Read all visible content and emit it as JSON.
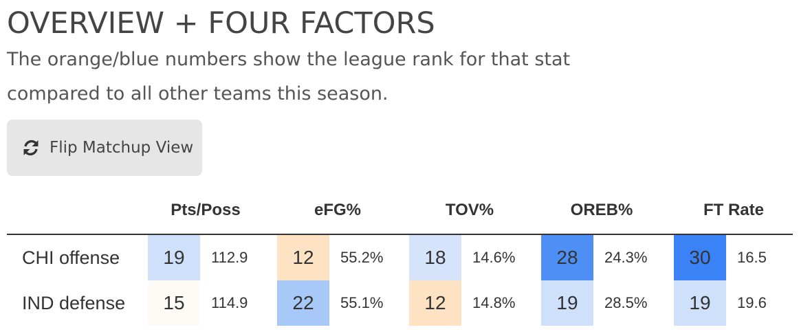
{
  "header": {
    "title": "OVERVIEW + FOUR FACTORS",
    "subtitle": "The orange/blue numbers show the league rank for that stat compared to all other teams this season."
  },
  "flip_button": {
    "label": "Flip Matchup View",
    "icon": "refresh-icon"
  },
  "table": {
    "columns": [
      "Pts/Poss",
      "eFG%",
      "TOV%",
      "OREB%",
      "FT Rate"
    ],
    "rows": [
      {
        "label": "CHI offense",
        "cells": [
          {
            "rank": "19",
            "value": "112.9",
            "color": "#cfe0fb"
          },
          {
            "rank": "12",
            "value": "55.2%",
            "color": "#fde3c3"
          },
          {
            "rank": "18",
            "value": "14.6%",
            "color": "#d5e4fb"
          },
          {
            "rank": "28",
            "value": "24.3%",
            "color": "#4d8ff5"
          },
          {
            "rank": "30",
            "value": "16.5",
            "color": "#3a82f5"
          }
        ]
      },
      {
        "label": "IND defense",
        "cells": [
          {
            "rank": "15",
            "value": "114.9",
            "color": "#fefbf6"
          },
          {
            "rank": "22",
            "value": "55.1%",
            "color": "#a8c8f8"
          },
          {
            "rank": "12",
            "value": "14.8%",
            "color": "#fde3c3"
          },
          {
            "rank": "19",
            "value": "28.5%",
            "color": "#cfe0fb"
          },
          {
            "rank": "19",
            "value": "19.6",
            "color": "#cfe0fb"
          }
        ]
      }
    ]
  }
}
